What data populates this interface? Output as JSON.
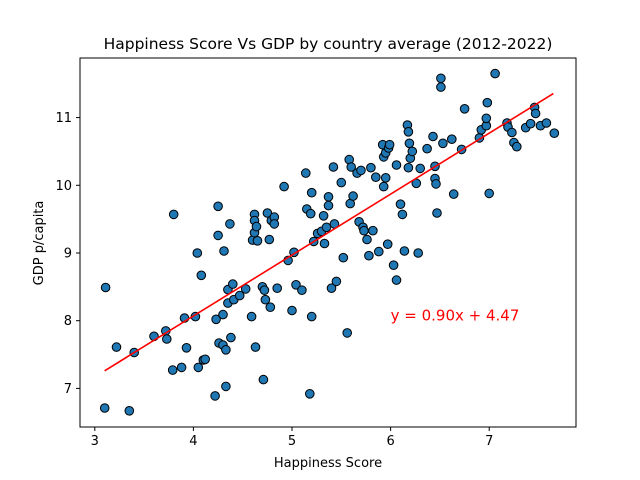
{
  "chart_data": {
    "type": "scatter",
    "title": "Happiness Score Vs GDP by country average (2012-2022)",
    "xlabel": "Happiness Score",
    "ylabel": "GDP p/capita",
    "xlim": [
      2.85,
      7.88
    ],
    "ylim": [
      6.43,
      11.88
    ],
    "xticks": [
      3,
      4,
      5,
      6,
      7
    ],
    "yticks": [
      7,
      8,
      9,
      10,
      11
    ],
    "grid": false,
    "marker_color": "#1f77b4",
    "marker_edge": "#000000",
    "regression": {
      "slope": 0.9,
      "intercept": 4.47,
      "x_range": [
        3.1,
        7.65
      ],
      "color": "#ff0000",
      "label": "y = 0.90x + 4.47",
      "label_pos": [
        6.0,
        8.0
      ]
    },
    "points": [
      [
        3.1,
        6.71
      ],
      [
        3.11,
        8.49
      ],
      [
        3.22,
        7.61
      ],
      [
        3.35,
        6.67
      ],
      [
        3.4,
        7.53
      ],
      [
        3.6,
        7.77
      ],
      [
        3.72,
        7.85
      ],
      [
        3.73,
        7.73
      ],
      [
        3.79,
        7.27
      ],
      [
        3.8,
        9.57
      ],
      [
        3.88,
        7.31
      ],
      [
        3.91,
        8.04
      ],
      [
        3.93,
        7.6
      ],
      [
        4.02,
        8.06
      ],
      [
        4.04,
        9.0
      ],
      [
        4.05,
        7.31
      ],
      [
        4.08,
        8.67
      ],
      [
        4.1,
        7.42
      ],
      [
        4.12,
        7.43
      ],
      [
        4.22,
        6.89
      ],
      [
        4.23,
        8.02
      ],
      [
        4.25,
        9.69
      ],
      [
        4.25,
        9.26
      ],
      [
        4.26,
        7.67
      ],
      [
        4.3,
        7.64
      ],
      [
        4.3,
        8.09
      ],
      [
        4.31,
        9.03
      ],
      [
        4.33,
        7.57
      ],
      [
        4.33,
        7.03
      ],
      [
        4.35,
        8.46
      ],
      [
        4.35,
        8.26
      ],
      [
        4.37,
        9.43
      ],
      [
        4.38,
        7.75
      ],
      [
        4.4,
        8.54
      ],
      [
        4.41,
        8.31
      ],
      [
        4.47,
        8.37
      ],
      [
        4.53,
        8.47
      ],
      [
        4.59,
        8.06
      ],
      [
        4.6,
        9.19
      ],
      [
        4.62,
        9.57
      ],
      [
        4.62,
        9.48
      ],
      [
        4.62,
        9.3
      ],
      [
        4.63,
        7.61
      ],
      [
        4.64,
        9.39
      ],
      [
        4.65,
        9.18
      ],
      [
        4.7,
        8.5
      ],
      [
        4.71,
        7.13
      ],
      [
        4.72,
        8.45
      ],
      [
        4.73,
        8.31
      ],
      [
        4.75,
        9.59
      ],
      [
        4.77,
        9.2
      ],
      [
        4.78,
        8.2
      ],
      [
        4.79,
        9.48
      ],
      [
        4.82,
        9.53
      ],
      [
        4.82,
        9.43
      ],
      [
        4.85,
        8.48
      ],
      [
        4.92,
        9.98
      ],
      [
        4.96,
        8.89
      ],
      [
        5.0,
        8.15
      ],
      [
        5.02,
        9.01
      ],
      [
        5.04,
        8.53
      ],
      [
        5.1,
        8.45
      ],
      [
        5.14,
        10.18
      ],
      [
        5.15,
        9.65
      ],
      [
        5.18,
        6.92
      ],
      [
        5.19,
        9.58
      ],
      [
        5.2,
        9.89
      ],
      [
        5.2,
        8.06
      ],
      [
        5.22,
        9.17
      ],
      [
        5.26,
        9.29
      ],
      [
        5.3,
        9.32
      ],
      [
        5.32,
        9.55
      ],
      [
        5.33,
        9.14
      ],
      [
        5.35,
        9.38
      ],
      [
        5.37,
        9.83
      ],
      [
        5.37,
        9.7
      ],
      [
        5.4,
        8.48
      ],
      [
        5.42,
        10.27
      ],
      [
        5.43,
        9.43
      ],
      [
        5.45,
        8.58
      ],
      [
        5.5,
        10.04
      ],
      [
        5.52,
        8.93
      ],
      [
        5.56,
        7.82
      ],
      [
        5.58,
        10.38
      ],
      [
        5.59,
        9.73
      ],
      [
        5.6,
        10.27
      ],
      [
        5.62,
        9.84
      ],
      [
        5.66,
        10.18
      ],
      [
        5.68,
        9.46
      ],
      [
        5.7,
        10.22
      ],
      [
        5.72,
        9.38
      ],
      [
        5.73,
        9.33
      ],
      [
        5.76,
        9.2
      ],
      [
        5.78,
        8.96
      ],
      [
        5.8,
        10.26
      ],
      [
        5.82,
        9.33
      ],
      [
        5.85,
        10.12
      ],
      [
        5.88,
        9.02
      ],
      [
        5.92,
        10.6
      ],
      [
        5.93,
        10.42
      ],
      [
        5.93,
        9.98
      ],
      [
        5.95,
        10.48
      ],
      [
        5.95,
        10.11
      ],
      [
        5.97,
        9.13
      ],
      [
        5.98,
        10.55
      ],
      [
        5.99,
        10.6
      ],
      [
        6.03,
        8.82
      ],
      [
        6.06,
        8.6
      ],
      [
        6.06,
        10.3
      ],
      [
        6.1,
        9.72
      ],
      [
        6.12,
        9.57
      ],
      [
        6.14,
        9.03
      ],
      [
        6.17,
        10.89
      ],
      [
        6.18,
        10.79
      ],
      [
        6.18,
        10.26
      ],
      [
        6.19,
        10.62
      ],
      [
        6.2,
        10.4
      ],
      [
        6.22,
        10.5
      ],
      [
        6.26,
        10.03
      ],
      [
        6.28,
        9.0
      ],
      [
        6.3,
        10.25
      ],
      [
        6.37,
        10.54
      ],
      [
        6.43,
        10.72
      ],
      [
        6.45,
        10.1
      ],
      [
        6.45,
        10.28
      ],
      [
        6.46,
        10.02
      ],
      [
        6.47,
        9.59
      ],
      [
        6.51,
        11.58
      ],
      [
        6.51,
        11.45
      ],
      [
        6.53,
        10.62
      ],
      [
        6.62,
        10.68
      ],
      [
        6.64,
        9.87
      ],
      [
        6.72,
        10.53
      ],
      [
        6.75,
        11.13
      ],
      [
        6.9,
        10.7
      ],
      [
        6.92,
        10.82
      ],
      [
        6.97,
        10.88
      ],
      [
        6.97,
        10.99
      ],
      [
        6.98,
        11.22
      ],
      [
        7.0,
        9.88
      ],
      [
        7.06,
        11.65
      ],
      [
        7.18,
        10.92
      ],
      [
        7.19,
        10.86
      ],
      [
        7.23,
        10.78
      ],
      [
        7.25,
        10.63
      ],
      [
        7.28,
        10.57
      ],
      [
        7.37,
        10.85
      ],
      [
        7.42,
        10.91
      ],
      [
        7.46,
        11.15
      ],
      [
        7.47,
        11.06
      ],
      [
        7.52,
        10.88
      ],
      [
        7.58,
        10.92
      ],
      [
        7.66,
        10.77
      ]
    ]
  }
}
